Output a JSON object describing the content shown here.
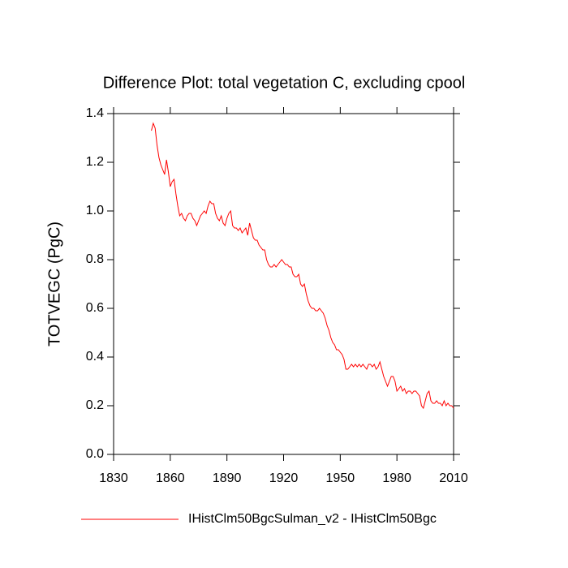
{
  "chart_data": {
    "type": "line",
    "title": "Difference Plot: total vegetation C, excluding cpool",
    "y_label": "TOTVEGC  (PgC)",
    "xlim": [
      1830,
      2010
    ],
    "xticks": [
      1830,
      1860,
      1890,
      1920,
      1950,
      1980,
      2010
    ],
    "ylim": [
      0,
      1.4
    ],
    "yticks": [
      {
        "value": 0,
        "label": "0.0"
      },
      {
        "value": 0.2,
        "label": "0.2"
      },
      {
        "value": 0.4,
        "label": "0.4"
      },
      {
        "value": 0.6,
        "label": "0.6"
      },
      {
        "value": 0.8,
        "label": "0.8"
      },
      {
        "value": 1.0,
        "label": "1.0"
      },
      {
        "value": 1.2,
        "label": "1.2"
      },
      {
        "value": 1.4,
        "label": "1.4"
      }
    ],
    "x": [
      1850,
      1851,
      1852,
      1853,
      1854,
      1855,
      1856,
      1857,
      1858,
      1859,
      1860,
      1861,
      1862,
      1863,
      1864,
      1865,
      1866,
      1867,
      1868,
      1869,
      1870,
      1871,
      1872,
      1873,
      1874,
      1875,
      1876,
      1877,
      1878,
      1879,
      1880,
      1881,
      1882,
      1883,
      1884,
      1885,
      1886,
      1887,
      1888,
      1889,
      1890,
      1891,
      1892,
      1893,
      1894,
      1895,
      1896,
      1897,
      1898,
      1899,
      1900,
      1901,
      1902,
      1903,
      1904,
      1905,
      1906,
      1907,
      1908,
      1909,
      1910,
      1911,
      1912,
      1913,
      1914,
      1915,
      1916,
      1917,
      1918,
      1919,
      1920,
      1921,
      1922,
      1923,
      1924,
      1925,
      1926,
      1927,
      1928,
      1929,
      1930,
      1931,
      1932,
      1933,
      1934,
      1935,
      1936,
      1937,
      1938,
      1939,
      1940,
      1941,
      1942,
      1943,
      1944,
      1945,
      1946,
      1947,
      1948,
      1949,
      1950,
      1951,
      1952,
      1953,
      1954,
      1955,
      1956,
      1957,
      1958,
      1959,
      1960,
      1961,
      1962,
      1963,
      1964,
      1965,
      1966,
      1967,
      1968,
      1969,
      1970,
      1971,
      1972,
      1973,
      1974,
      1975,
      1976,
      1977,
      1978,
      1979,
      1980,
      1981,
      1982,
      1983,
      1984,
      1985,
      1986,
      1987,
      1988,
      1989,
      1990,
      1991,
      1992,
      1993,
      1994,
      1995,
      1996,
      1997,
      1998,
      1999,
      2000,
      2001,
      2002,
      2003,
      2004,
      2005,
      2006,
      2007,
      2008,
      2009,
      2010
    ],
    "series": [
      {
        "name": "IHistClm50BgcSulman_v2 - IHistClm50Bgc",
        "color": "#ff0000",
        "values": [
          1.33,
          1.36,
          1.34,
          1.27,
          1.22,
          1.19,
          1.17,
          1.15,
          1.21,
          1.16,
          1.1,
          1.12,
          1.13,
          1.07,
          1.02,
          0.98,
          0.99,
          0.97,
          0.96,
          0.98,
          0.99,
          0.99,
          0.97,
          0.96,
          0.94,
          0.96,
          0.98,
          0.99,
          1.0,
          0.99,
          1.02,
          1.04,
          1.03,
          1.03,
          0.99,
          0.97,
          0.96,
          0.98,
          0.95,
          0.94,
          0.97,
          0.99,
          1.0,
          0.94,
          0.93,
          0.93,
          0.92,
          0.93,
          0.91,
          0.92,
          0.93,
          0.9,
          0.95,
          0.92,
          0.89,
          0.88,
          0.88,
          0.86,
          0.85,
          0.84,
          0.84,
          0.8,
          0.78,
          0.77,
          0.77,
          0.78,
          0.77,
          0.78,
          0.79,
          0.8,
          0.79,
          0.78,
          0.78,
          0.77,
          0.77,
          0.74,
          0.73,
          0.73,
          0.74,
          0.7,
          0.69,
          0.7,
          0.66,
          0.63,
          0.61,
          0.6,
          0.6,
          0.59,
          0.59,
          0.6,
          0.59,
          0.58,
          0.56,
          0.53,
          0.51,
          0.48,
          0.46,
          0.45,
          0.43,
          0.43,
          0.42,
          0.41,
          0.39,
          0.35,
          0.35,
          0.36,
          0.37,
          0.36,
          0.37,
          0.36,
          0.37,
          0.36,
          0.37,
          0.36,
          0.35,
          0.37,
          0.37,
          0.36,
          0.37,
          0.35,
          0.36,
          0.38,
          0.35,
          0.32,
          0.3,
          0.28,
          0.3,
          0.32,
          0.32,
          0.3,
          0.26,
          0.27,
          0.28,
          0.26,
          0.27,
          0.25,
          0.26,
          0.26,
          0.25,
          0.26,
          0.26,
          0.25,
          0.24,
          0.2,
          0.19,
          0.22,
          0.25,
          0.26,
          0.22,
          0.21,
          0.21,
          0.22,
          0.21,
          0.21,
          0.2,
          0.22,
          0.2,
          0.21,
          0.2,
          0.2,
          0.19
        ]
      }
    ]
  }
}
